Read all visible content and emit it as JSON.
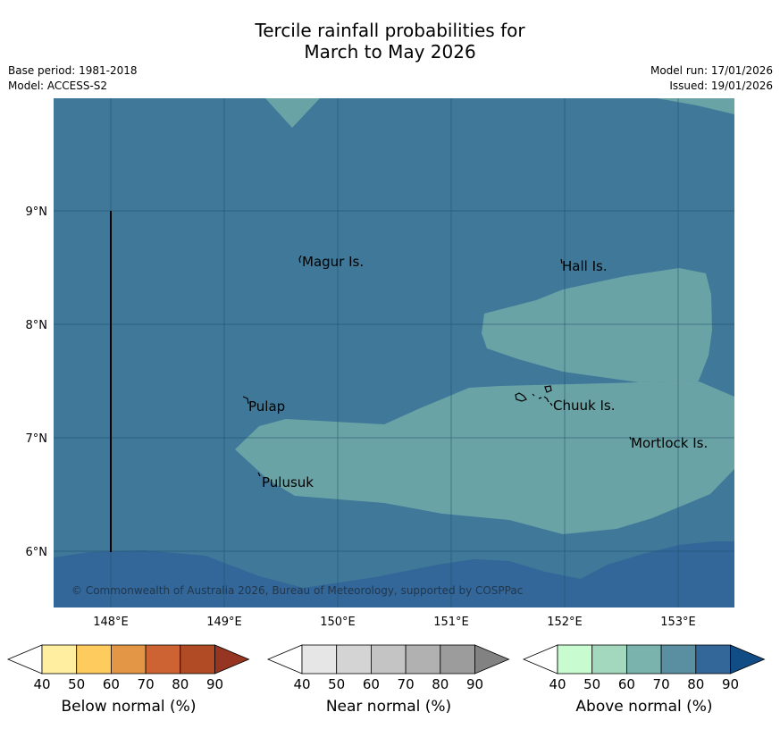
{
  "header": {
    "title_line1": "Tercile rainfall probabilities for",
    "title_line2": "March to May 2026",
    "base_period": "Base period: 1981-2018",
    "model": "Model: ACCESS-S2",
    "model_run": "Model run: 17/01/2026",
    "issued": "Issued: 19/01/2026"
  },
  "map": {
    "lon_ticks": [
      "148°E",
      "149°E",
      "150°E",
      "151°E",
      "152°E",
      "153°E"
    ],
    "lat_ticks": [
      "9°N",
      "8°N",
      "7°N",
      "6°N"
    ],
    "places": [
      "Magur Is.",
      "Hall Is.",
      "Pulap",
      "Chuuk Is.",
      "Mortlock Is.",
      "Pulusuk"
    ],
    "copyright": "© Commonwealth of Australia 2026, Bureau of Meteorology, supported by COSPPac",
    "colors": {
      "ocean_base": "#3f7898",
      "above_80": "#336699",
      "above_70": "#6aa3a6",
      "grid": "#1f4f6a"
    }
  },
  "colorbars": [
    {
      "label": "Below normal (%)",
      "ticks": [
        "40",
        "50",
        "60",
        "70",
        "80",
        "90"
      ],
      "colors": [
        "#ffffff",
        "#ffeda0",
        "#fecb5e",
        "#e39646",
        "#cd6332",
        "#b04b26",
        "#963622"
      ]
    },
    {
      "label": "Near normal (%)",
      "ticks": [
        "40",
        "50",
        "60",
        "70",
        "80",
        "90"
      ],
      "colors": [
        "#ffffff",
        "#e6e6e6",
        "#d4d4d4",
        "#c4c4c4",
        "#b1b1b1",
        "#9c9c9c",
        "#828282"
      ]
    },
    {
      "label": "Above normal (%)",
      "ticks": [
        "40",
        "50",
        "60",
        "70",
        "80",
        "90"
      ],
      "colors": [
        "#ffffff",
        "#c8fcd0",
        "#a3d8bf",
        "#7ab3ad",
        "#5a8fa2",
        "#336699",
        "#124c85"
      ]
    }
  ]
}
